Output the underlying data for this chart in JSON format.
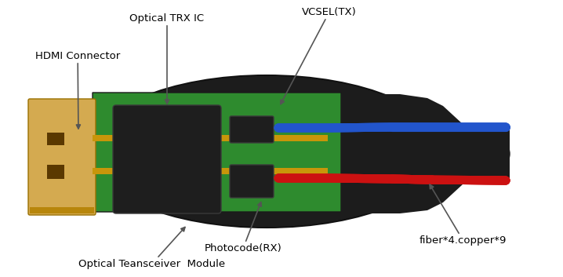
{
  "bg_color": "#ffffff",
  "labels": {
    "optical_trx": "Optical TRX IC",
    "vcsel": "VCSEL(TX)",
    "hdmi_connector": "HDMI Connector",
    "photocode": "Photocode(RX)",
    "fiber": "fiber*4.copper*9",
    "module": "Optical Teansceiver  Module"
  },
  "colors": {
    "black_body": "#1c1c1c",
    "green_pcb": "#2e8b2e",
    "gold_light": "#d4aa50",
    "gold_dark": "#b8860b",
    "gold_stripe": "#c8960a",
    "dark_chip": "#1e1e1e",
    "chip_border": "#333333",
    "blue_wire": "#2255cc",
    "red_wire": "#cc1111",
    "label_color": "#000000",
    "arrow_color": "#555555"
  },
  "figsize": [
    7.18,
    3.53
  ],
  "dpi": 100
}
